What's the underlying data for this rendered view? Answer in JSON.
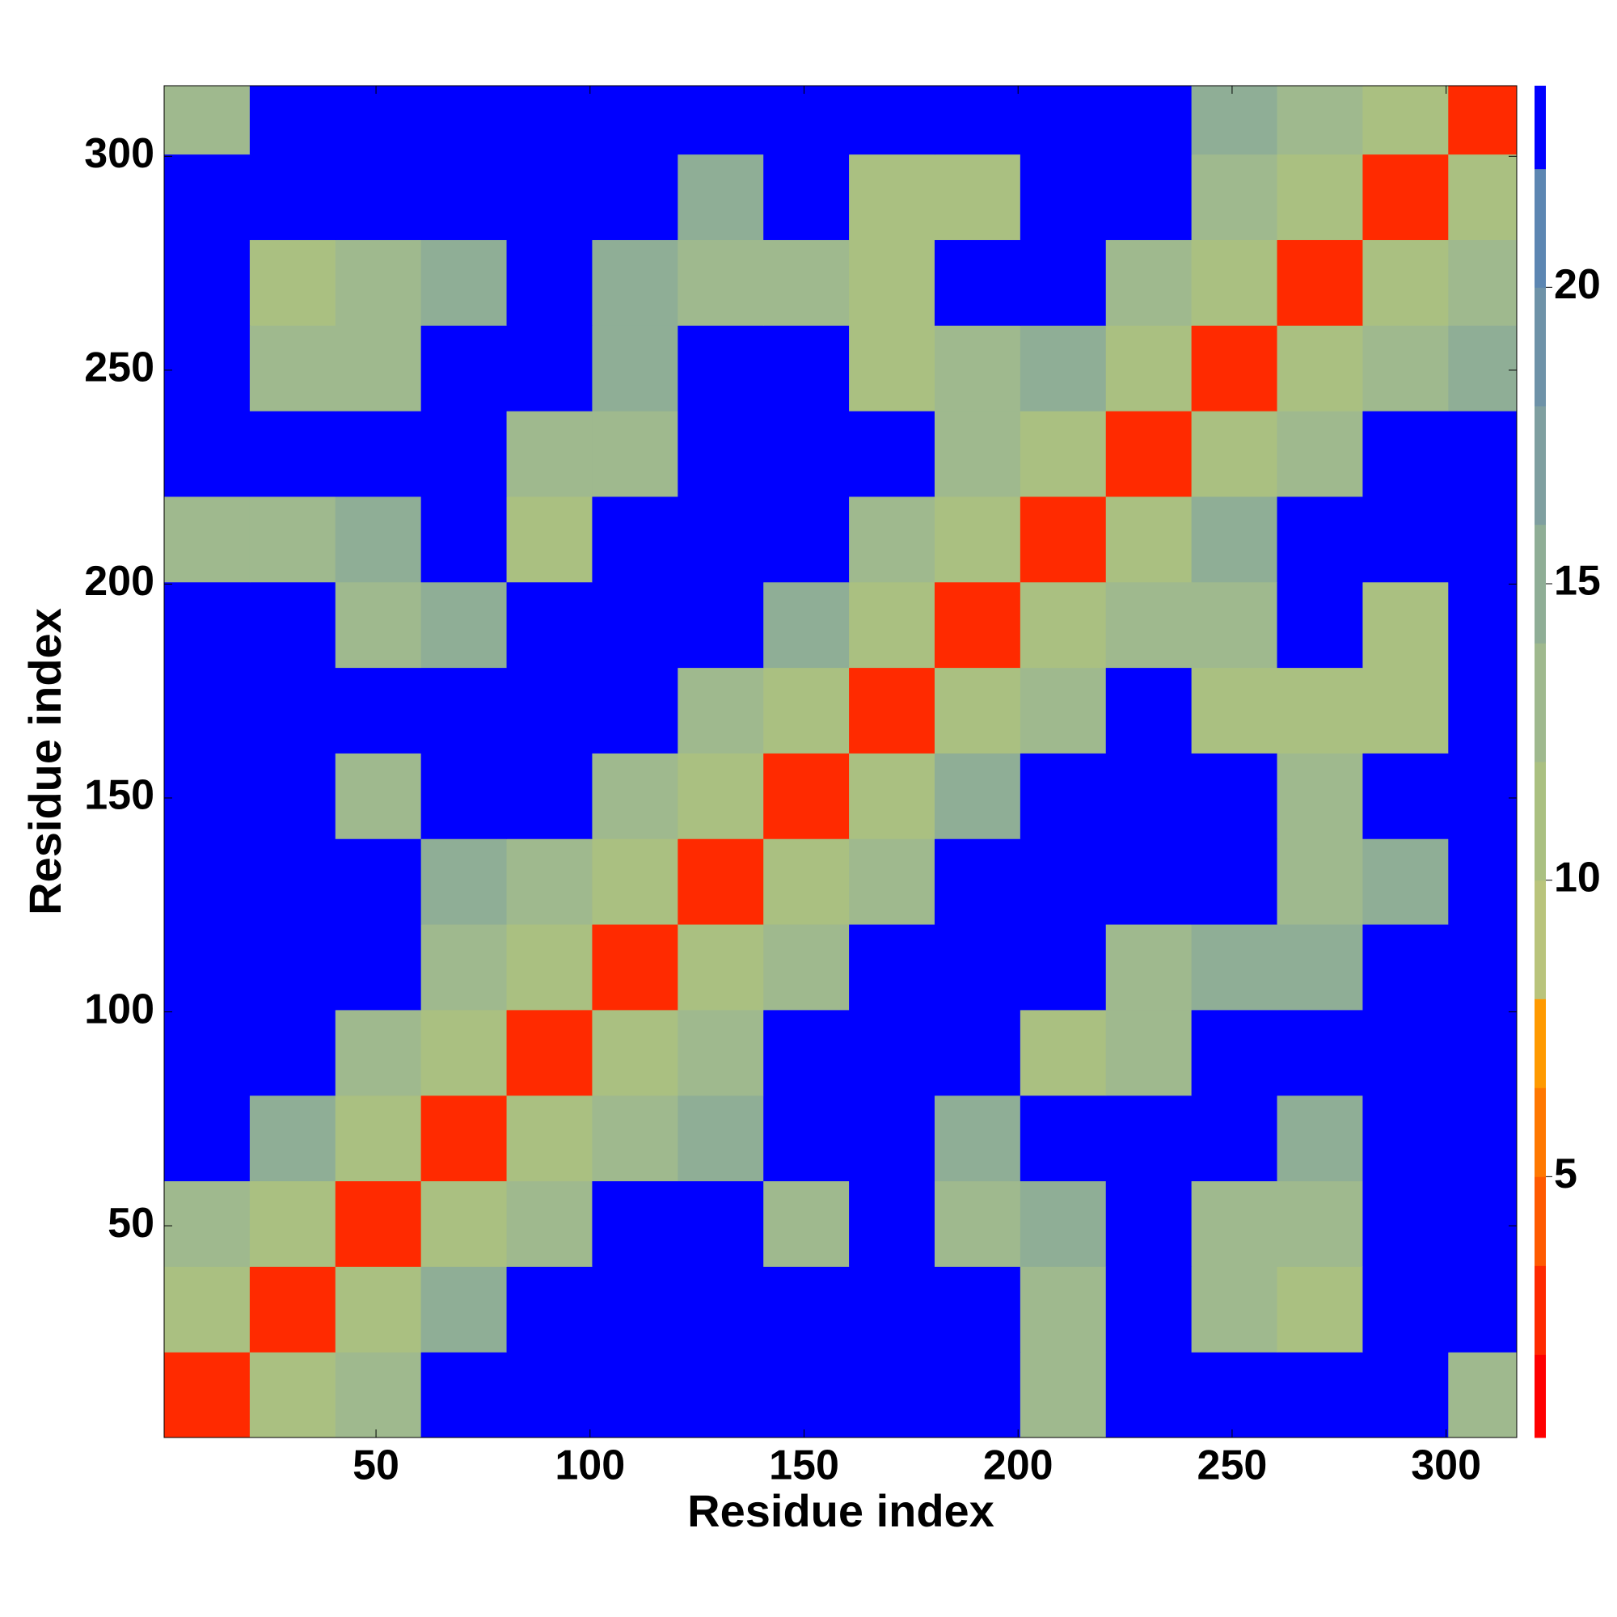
{
  "chart_data": {
    "type": "heatmap",
    "xlabel": "Residue index",
    "ylabel": "Residue index",
    "xbins": [
      0.5,
      20.5,
      40.5,
      60.5,
      80.5,
      100.5,
      120.5,
      140.5,
      160.5,
      180.5,
      200.5,
      220.5,
      240.5,
      260.5,
      280.5,
      300.5,
      316.5
    ],
    "ybins": [
      0.5,
      20.5,
      40.5,
      60.5,
      80.5,
      100.5,
      120.5,
      140.5,
      160.5,
      180.5,
      200.5,
      220.5,
      240.5,
      260.5,
      280.5,
      300.5,
      316.5
    ],
    "xlim": [
      0.5,
      316.5
    ],
    "ylim": [
      0.5,
      316.5
    ],
    "xticks": [
      50,
      100,
      150,
      200,
      250,
      300
    ],
    "yticks": [
      50,
      100,
      150,
      200,
      250,
      300
    ],
    "values": [
      [
        3,
        12,
        14,
        23,
        23,
        23,
        23,
        23,
        23,
        23,
        14,
        23,
        23,
        23,
        23,
        14
      ],
      [
        12,
        3,
        12,
        16,
        23,
        23,
        23,
        23,
        23,
        23,
        14,
        23,
        14,
        12,
        23,
        23
      ],
      [
        14,
        12,
        3,
        12,
        14,
        23,
        23,
        14,
        23,
        14,
        16,
        23,
        14,
        14,
        23,
        23
      ],
      [
        23,
        16,
        12,
        3,
        12,
        14,
        16,
        23,
        23,
        16,
        23,
        23,
        23,
        16,
        23,
        23
      ],
      [
        23,
        23,
        14,
        12,
        3,
        12,
        14,
        23,
        23,
        23,
        12,
        14,
        23,
        23,
        23,
        23
      ],
      [
        23,
        23,
        23,
        14,
        12,
        3,
        12,
        14,
        23,
        23,
        23,
        14,
        16,
        16,
        23,
        23
      ],
      [
        23,
        23,
        23,
        16,
        14,
        12,
        3,
        12,
        14,
        23,
        23,
        23,
        23,
        14,
        16,
        23
      ],
      [
        23,
        23,
        14,
        23,
        23,
        14,
        12,
        3,
        12,
        16,
        23,
        23,
        23,
        14,
        23,
        23
      ],
      [
        23,
        23,
        23,
        23,
        23,
        23,
        14,
        12,
        3,
        12,
        14,
        23,
        12,
        12,
        12,
        23
      ],
      [
        23,
        23,
        14,
        16,
        23,
        23,
        23,
        16,
        12,
        3,
        12,
        14,
        14,
        23,
        12,
        23
      ],
      [
        14,
        14,
        16,
        23,
        12,
        23,
        23,
        23,
        14,
        12,
        3,
        12,
        16,
        23,
        23,
        23
      ],
      [
        23,
        23,
        23,
        23,
        14,
        14,
        23,
        23,
        23,
        14,
        12,
        3,
        12,
        14,
        23,
        23
      ],
      [
        23,
        14,
        14,
        23,
        23,
        16,
        23,
        23,
        12,
        14,
        16,
        12,
        3,
        12,
        14,
        16
      ],
      [
        23,
        12,
        14,
        16,
        23,
        16,
        14,
        14,
        12,
        23,
        23,
        14,
        12,
        3,
        12,
        14
      ],
      [
        23,
        23,
        23,
        23,
        23,
        23,
        16,
        23,
        12,
        12,
        23,
        23,
        14,
        12,
        3,
        12
      ],
      [
        14,
        23,
        23,
        23,
        23,
        23,
        23,
        23,
        23,
        23,
        23,
        23,
        16,
        14,
        12,
        3
      ]
    ],
    "clim": [
      0.6,
      23.4
    ],
    "levels": [
      0.6,
      2,
      3.5,
      5,
      6.5,
      8,
      10,
      12,
      14,
      16,
      18,
      20,
      22,
      23.4
    ],
    "colors": [
      "#ff0000",
      "#ff2a00",
      "#ff5a00",
      "#ff7800",
      "#ff9a00",
      "#b9c47c",
      "#aac081",
      "#9fb98e",
      "#8fae96",
      "#7f9fa0",
      "#6e92a8",
      "#5c86b2",
      "#0000ff"
    ],
    "cticks": [
      5,
      10,
      15,
      20
    ]
  }
}
